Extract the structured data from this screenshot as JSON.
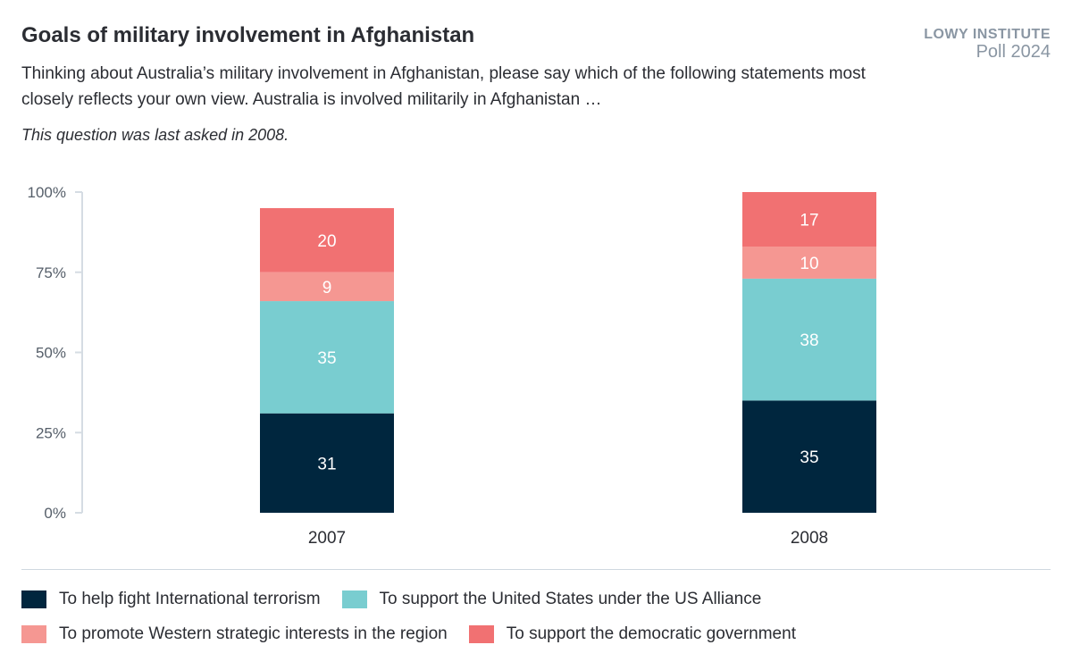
{
  "header": {
    "title": "Goals of military involvement in Afghanistan",
    "subtitle": "Thinking about Australia’s military involvement in Afghanistan, please say which of the following statements most closely reflects your own view. Australia is involved militarily in Afghanistan …",
    "note": "This question was last asked in 2008.",
    "brand_line1": "LOWY INSTITUTE",
    "brand_line2": "Poll 2024"
  },
  "chart_data": {
    "type": "bar",
    "stacked": true,
    "categories": [
      "2007",
      "2008"
    ],
    "ylim": [
      0,
      100
    ],
    "yticks": [
      "0%",
      "25%",
      "50%",
      "75%",
      "100%"
    ],
    "series": [
      {
        "name": "To help fight International terrorism",
        "color": "#00263e",
        "values": [
          31,
          35
        ]
      },
      {
        "name": "To support the United States under the US Alliance",
        "color": "#79cdd0",
        "values": [
          35,
          38
        ]
      },
      {
        "name": "To promote Western strategic interests in the region",
        "color": "#f59792",
        "values": [
          9,
          10
        ]
      },
      {
        "name": "To support the democratic government",
        "color": "#f17172",
        "values": [
          20,
          17
        ]
      }
    ],
    "legend": "bottom"
  }
}
